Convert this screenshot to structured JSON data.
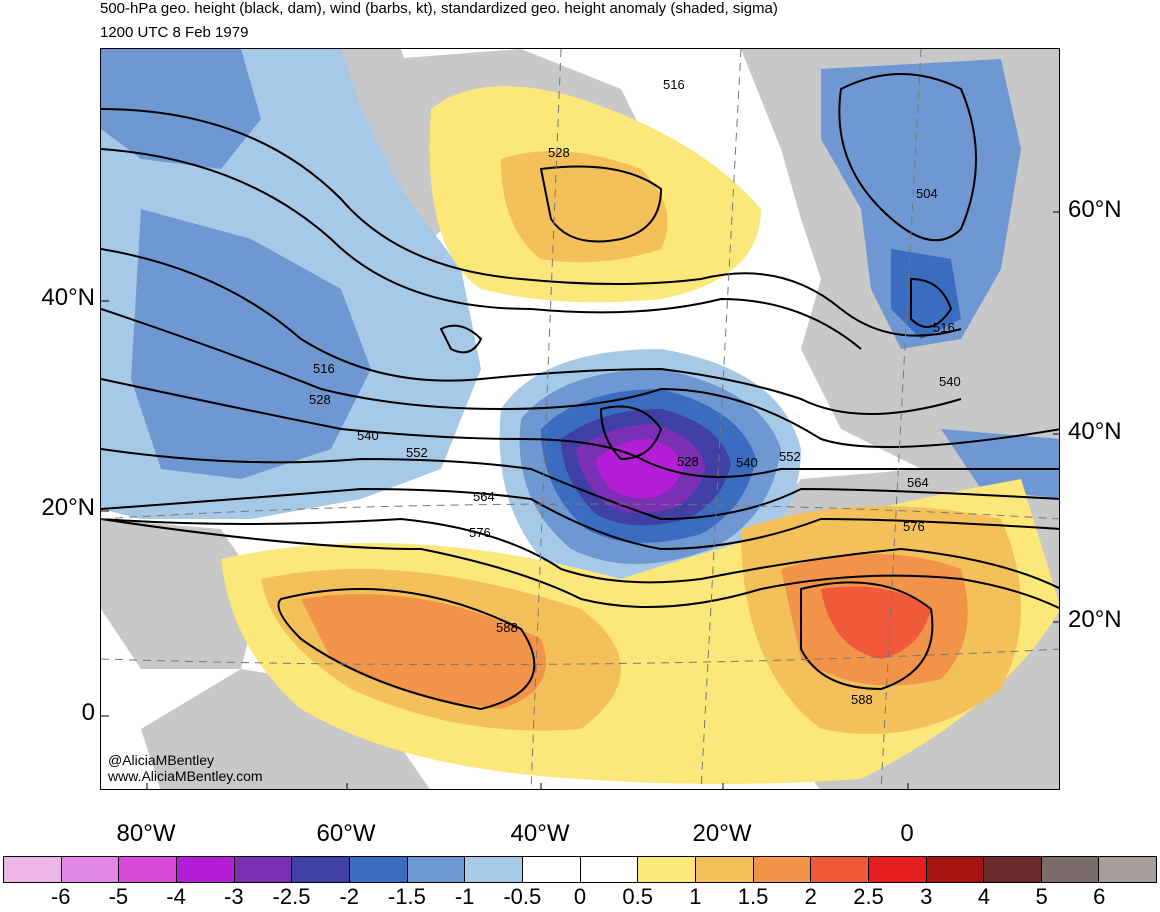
{
  "header": {
    "title": "500-hPa geo. height (black, dam), wind (barbs, kt), standardized geo. height anomaly (shaded, sigma)",
    "subtitle": "1200 UTC 8 Feb 1979"
  },
  "credits": {
    "handle": "@AliciaMBentley",
    "website": "www.AliciaMBentley.com"
  },
  "axes": {
    "left_lat": [
      {
        "label": "40°N",
        "top": 284
      },
      {
        "label": "20°N",
        "top": 494
      },
      {
        "label": "0",
        "top": 699
      }
    ],
    "right_lat": [
      {
        "label": "60°N",
        "top": 196
      },
      {
        "label": "40°N",
        "top": 418
      },
      {
        "label": "20°N",
        "top": 606
      }
    ],
    "lon": [
      {
        "label": "80°W",
        "left": 146
      },
      {
        "label": "60°W",
        "left": 346
      },
      {
        "label": "40°W",
        "left": 540
      },
      {
        "label": "20°W",
        "left": 722
      },
      {
        "label": "0",
        "left": 907
      }
    ]
  },
  "contour_labels": [
    "516",
    "528",
    "504",
    "516",
    "540",
    "516",
    "528",
    "540",
    "552",
    "564",
    "576",
    "528",
    "540",
    "552",
    "564",
    "576",
    "588",
    "588"
  ],
  "colorbar": {
    "labels": [
      "-6",
      "-5",
      "-4",
      "-3",
      "-2.5",
      "-2",
      "-1.5",
      "-1",
      "-0.5",
      "0",
      "0.5",
      "1",
      "1.5",
      "2",
      "2.5",
      "3",
      "4",
      "5",
      "6"
    ],
    "colors": [
      "#ebb5e6",
      "#e387e6",
      "#d84bd8",
      "#b41ed6",
      "#7a2fb4",
      "#3f3fa6",
      "#3a6cc0",
      "#6f98d2",
      "#a7c9e8",
      "#ffffff",
      "#ffffff",
      "#fbe77a",
      "#f4c05a",
      "#f2934a",
      "#f05a3a",
      "#e61d1d",
      "#a51313",
      "#6b2a2a",
      "#7a6c6a",
      "#a59c9b"
    ]
  }
}
